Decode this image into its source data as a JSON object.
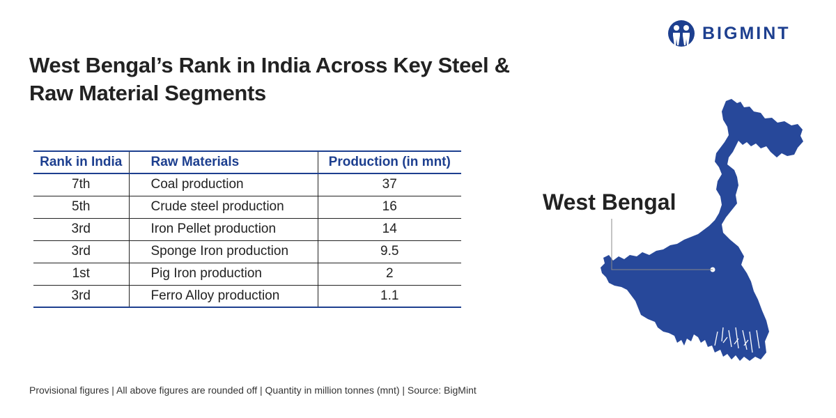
{
  "brand": {
    "name": "BIGMINT",
    "color": "#1d3f8f"
  },
  "title": "West Bengal’s Rank in India Across Key Steel & Raw Material Segments",
  "table": {
    "headers": [
      "Rank in India",
      "Raw Materials",
      "Production (in mnt)"
    ],
    "rows": [
      [
        "7th",
        "Coal production",
        "37"
      ],
      [
        "5th",
        "Crude steel production",
        "16"
      ],
      [
        "3rd",
        "Iron Pellet production",
        "14"
      ],
      [
        "3rd",
        "Sponge Iron production",
        "9.5"
      ],
      [
        "1st",
        "Pig Iron production",
        "2"
      ],
      [
        "3rd",
        "Ferro Alloy production",
        "1.1"
      ]
    ]
  },
  "map": {
    "label": "West Bengal",
    "fill_color": "#27489a"
  },
  "footnote": "Provisional figures | All above figures are rounded off | Quantity in million tonnes (mnt) | Source: BigMint",
  "chart_data": {
    "type": "table",
    "title": "West Bengal’s Rank in India Across Key Steel & Raw Material Segments",
    "columns": [
      "Rank in India",
      "Raw Materials",
      "Production (in mnt)"
    ],
    "rows": [
      {
        "rank": "7th",
        "material": "Coal production",
        "production": 37
      },
      {
        "rank": "5th",
        "material": "Crude steel production",
        "production": 16
      },
      {
        "rank": "3rd",
        "material": "Iron Pellet production",
        "production": 14
      },
      {
        "rank": "3rd",
        "material": "Sponge Iron production",
        "production": 9.5
      },
      {
        "rank": "1st",
        "material": "Pig Iron production",
        "production": 2
      },
      {
        "rank": "3rd",
        "material": "Ferro Alloy production",
        "production": 1.1
      }
    ]
  }
}
